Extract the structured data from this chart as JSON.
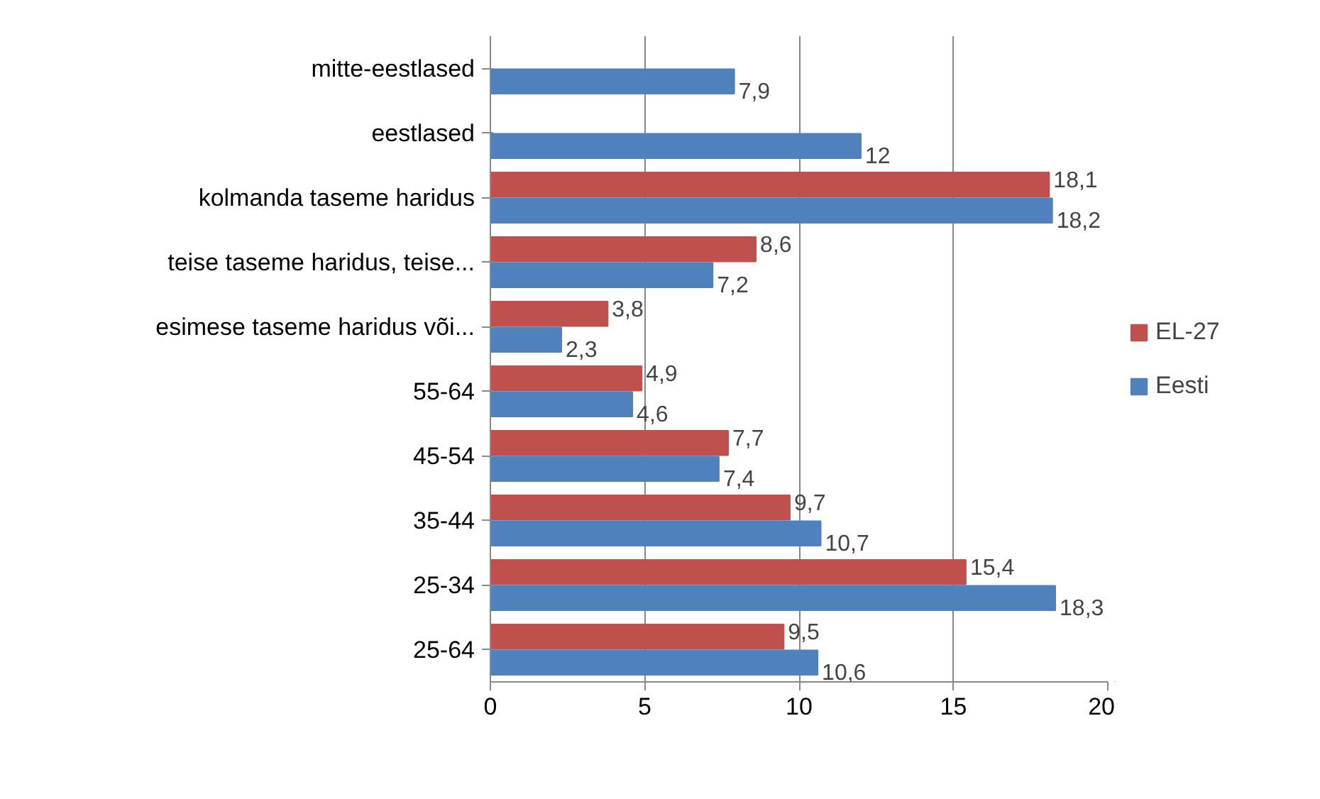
{
  "chart_data": {
    "type": "bar",
    "orientation": "horizontal",
    "categories": [
      "mitte-eestlased",
      "eestlased",
      "kolmanda taseme haridus",
      "teise taseme haridus, teise...",
      "esimese taseme haridus või...",
      "55-64",
      "45-54",
      "35-44",
      "25-34",
      "25-64"
    ],
    "series": [
      {
        "name": "EL-27",
        "color": "#c0504d",
        "values": [
          null,
          null,
          18.1,
          8.6,
          3.8,
          4.9,
          7.7,
          9.7,
          15.4,
          9.5
        ],
        "value_labels": [
          null,
          null,
          "18,1",
          "8,6",
          "3,8",
          "4,9",
          "7,7",
          "9,7",
          "15,4",
          "9,5"
        ]
      },
      {
        "name": "Eesti",
        "color": "#4f81bd",
        "values": [
          7.9,
          12,
          18.2,
          7.2,
          2.3,
          4.6,
          7.4,
          10.7,
          18.3,
          10.6
        ],
        "value_labels": [
          "7,9",
          "12",
          "18,2",
          "7,2",
          "2,3",
          "4,6",
          "7,4",
          "10,7",
          "18,3",
          "10,6"
        ]
      }
    ],
    "xlim": [
      0,
      20
    ],
    "xticks": [
      0,
      5,
      10,
      15,
      20
    ],
    "grid": "x",
    "legend": "right"
  }
}
